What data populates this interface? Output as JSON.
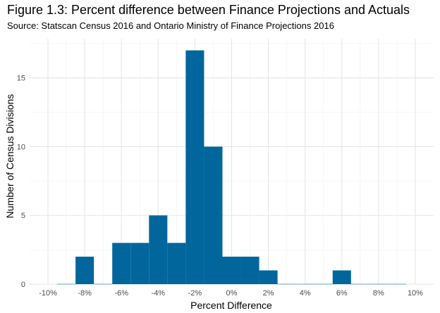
{
  "chart_data": {
    "type": "bar",
    "title": "Figure 1.3: Percent difference between Finance Projections and Actuals",
    "subtitle": "Source: Statscan Census 2016 and Ontario Ministry of Finance Projections 2016",
    "xlabel": "Percent Difference",
    "ylabel": "Number of Census Divisions",
    "xlim": [
      -11,
      11
    ],
    "ylim": [
      0,
      17.85
    ],
    "x_ticks": [
      -10,
      -8,
      -6,
      -4,
      -2,
      0,
      2,
      4,
      6,
      8,
      10
    ],
    "x_tick_labels": [
      "-10%",
      "-8%",
      "-6%",
      "-4%",
      "-2%",
      "0%",
      "2%",
      "4%",
      "6%",
      "8%",
      "10%"
    ],
    "y_ticks": [
      0,
      5,
      10,
      15
    ],
    "y_tick_labels": [
      "0",
      "5",
      "10",
      "15"
    ],
    "bin_width": 1,
    "bin_centers": [
      -9,
      -8,
      -7,
      -6,
      -5,
      -4,
      -3,
      -2,
      -1,
      0,
      1,
      2,
      3,
      4,
      5,
      6,
      7,
      8,
      9
    ],
    "values": [
      0,
      2,
      0,
      3,
      3,
      5,
      3,
      17,
      10,
      2,
      2,
      1,
      0,
      0,
      0,
      1,
      0,
      0,
      0
    ],
    "bar_color": "#00669b",
    "grid": true
  }
}
